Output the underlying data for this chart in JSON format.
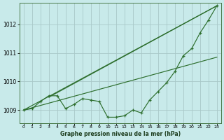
{
  "title": "Graphe pression niveau de la mer (hPa)",
  "bg_color": "#c8eaea",
  "grid_color": "#a8c8c8",
  "line_color": "#2d6e2d",
  "xlim": [
    -0.5,
    23.5
  ],
  "ylim": [
    1008.55,
    1012.75
  ],
  "yticks": [
    1009,
    1010,
    1011,
    1012
  ],
  "xticks": [
    0,
    1,
    2,
    3,
    4,
    5,
    6,
    7,
    8,
    9,
    10,
    11,
    12,
    13,
    14,
    15,
    16,
    17,
    18,
    19,
    20,
    21,
    22,
    23
  ],
  "measured_x": [
    0,
    1,
    2,
    3,
    4,
    5,
    6,
    7,
    8,
    9,
    10,
    11,
    12,
    13,
    14,
    15,
    16,
    17,
    18,
    19,
    20,
    21,
    22,
    23
  ],
  "measured_y": [
    1009.0,
    1009.05,
    1009.3,
    1009.5,
    1009.5,
    1009.05,
    1009.2,
    1009.4,
    1009.35,
    1009.3,
    1008.75,
    1008.75,
    1008.8,
    1009.0,
    1008.9,
    1009.35,
    1009.65,
    1009.95,
    1010.35,
    1010.9,
    1011.15,
    1011.7,
    1012.15,
    1012.65
  ],
  "straight_lines": [
    {
      "x": [
        0,
        23
      ],
      "y": [
        1009.0,
        1012.65
      ]
    },
    {
      "x": [
        0,
        23
      ],
      "y": [
        1009.0,
        1010.85
      ]
    },
    {
      "x": [
        3,
        23
      ],
      "y": [
        1009.45,
        1012.65
      ]
    }
  ]
}
